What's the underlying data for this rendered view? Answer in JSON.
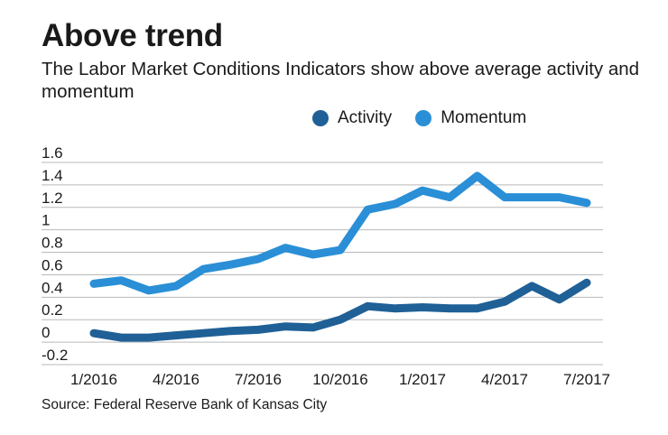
{
  "title": "Above trend",
  "subtitle": "The Labor Market Conditions Indicators show above average activity and momentum",
  "source": "Source: Federal Reserve Bank of Kansas City",
  "colors": {
    "activity": "#1f6096",
    "momentum": "#2a8fd6",
    "grid": "#b9b9b9",
    "text": "#1a1a1a"
  },
  "chart_data": {
    "type": "line",
    "x_tick_labels": [
      "1/2016",
      "4/2016",
      "7/2016",
      "10/2016",
      "1/2017",
      "4/2017",
      "7/2017"
    ],
    "y_tick_labels": [
      "1.6",
      "1.4",
      "1.2",
      "1",
      "0.8",
      "0.6",
      "0.4",
      "0.2",
      "0",
      "-0.2"
    ],
    "ylim": [
      -0.2,
      1.6
    ],
    "x": [
      "1/2016",
      "2/2016",
      "3/2016",
      "4/2016",
      "5/2016",
      "6/2016",
      "7/2016",
      "8/2016",
      "9/2016",
      "10/2016",
      "11/2016",
      "12/2016",
      "1/2017",
      "2/2017",
      "3/2017",
      "4/2017",
      "5/2017",
      "6/2017",
      "7/2017"
    ],
    "grid": true,
    "legend_position": "top-right",
    "series": [
      {
        "name": "Activity",
        "values": [
          0.08,
          0.04,
          0.04,
          0.06,
          0.08,
          0.1,
          0.11,
          0.14,
          0.13,
          0.2,
          0.32,
          0.3,
          0.31,
          0.3,
          0.3,
          0.36,
          0.5,
          0.38,
          0.53
        ]
      },
      {
        "name": "Momentum",
        "values": [
          0.52,
          0.55,
          0.46,
          0.5,
          0.65,
          0.69,
          0.74,
          0.84,
          0.78,
          0.82,
          1.18,
          1.23,
          1.35,
          1.29,
          1.48,
          1.29,
          1.29,
          1.29,
          1.24
        ]
      }
    ]
  }
}
